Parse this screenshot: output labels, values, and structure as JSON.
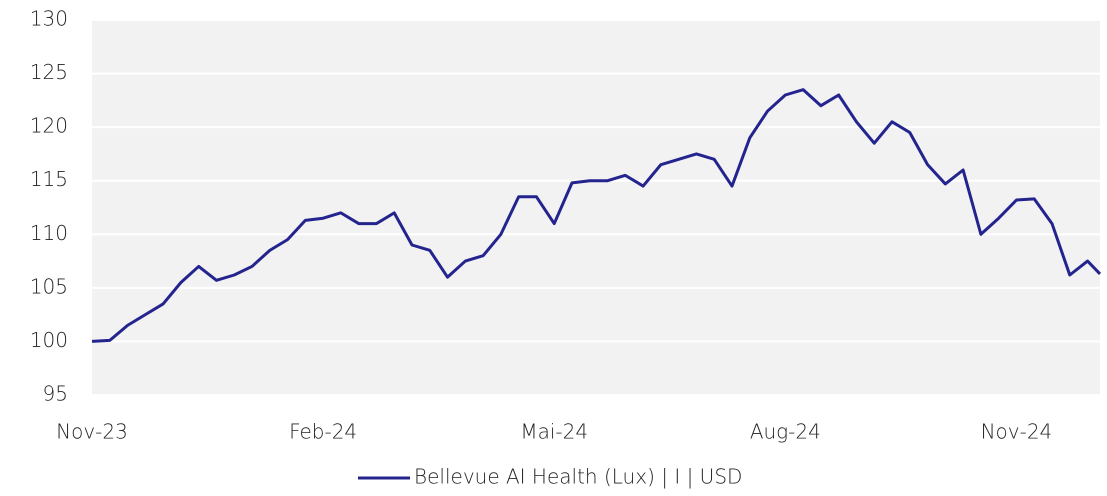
{
  "chart_data": {
    "type": "line",
    "x": [
      0,
      1,
      2,
      3,
      4,
      5,
      6,
      7,
      8,
      9,
      10,
      11,
      12,
      13,
      14,
      15,
      16,
      17,
      18,
      19,
      20,
      21,
      22,
      23,
      24,
      25,
      26,
      27,
      28,
      29,
      30,
      31,
      32,
      33,
      34,
      35,
      36,
      37,
      38,
      39,
      40,
      41,
      42,
      43,
      44,
      45,
      46,
      47,
      48,
      49,
      50,
      51,
      52,
      53,
      54,
      55,
      56,
      56.7
    ],
    "series": [
      {
        "name": "Bellevue AI Health (Lux) | I | USD",
        "color": "#24248f",
        "values": [
          100,
          100.1,
          101.5,
          102.5,
          103.5,
          105.5,
          107,
          105.7,
          106.2,
          107,
          108.5,
          109.5,
          111.3,
          111.5,
          112,
          111,
          111,
          112,
          109,
          108.5,
          106,
          107.5,
          108,
          110,
          113.5,
          113.5,
          111,
          114.8,
          115,
          115,
          115.5,
          114.5,
          116.5,
          117,
          117.5,
          117,
          114.5,
          119,
          121.5,
          123,
          123.5,
          122,
          123,
          120.5,
          118.5,
          120.5,
          119.5,
          116.5,
          114.7,
          116,
          110,
          111.5,
          113.2,
          113.3,
          111,
          106.2,
          107.5,
          106.3
        ]
      }
    ],
    "xlim": [
      0,
      56.7
    ],
    "xticks": [
      {
        "value": 0,
        "label": "Nov-23"
      },
      {
        "value": 13,
        "label": "Feb-24"
      },
      {
        "value": 26,
        "label": "Mai-24"
      },
      {
        "value": 39,
        "label": "Aug-24"
      },
      {
        "value": 52,
        "label": "Nov-24"
      }
    ],
    "ylim": [
      95,
      130
    ],
    "yticks": [
      95,
      100,
      105,
      110,
      115,
      120,
      125,
      130
    ],
    "grid": true,
    "legend": "bottom"
  }
}
